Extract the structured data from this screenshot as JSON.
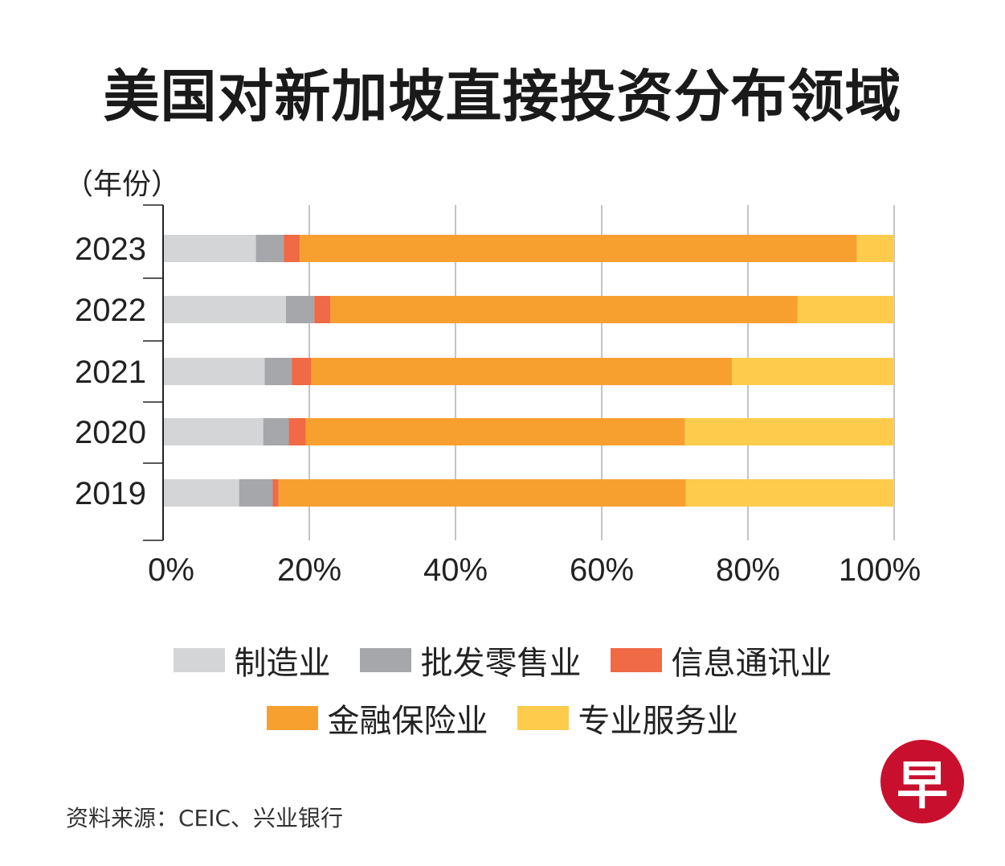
{
  "chart_data": {
    "type": "bar",
    "orientation": "horizontal",
    "stacked": "percent",
    "title": "美国对新加坡直接投资分布领域",
    "y_unit_label": "（年份）",
    "categories": [
      "2023",
      "2022",
      "2021",
      "2020",
      "2019"
    ],
    "x_ticks": [
      "0%",
      "20%",
      "40%",
      "60%",
      "80%",
      "100%"
    ],
    "xlim": [
      0,
      100
    ],
    "grid": true,
    "legend_position": "bottom",
    "series": [
      {
        "name": "制造业",
        "color": "#d4d5d7",
        "values": [
          12.7,
          16.8,
          13.9,
          13.7,
          10.4
        ]
      },
      {
        "name": "批发零售业",
        "color": "#a6a7aa",
        "values": [
          3.8,
          3.9,
          3.7,
          3.5,
          4.6
        ]
      },
      {
        "name": "信息通讯业",
        "color": "#ef6a45",
        "values": [
          2.2,
          2.2,
          2.7,
          2.3,
          0.8
        ]
      },
      {
        "name": "金融保险业",
        "color": "#f7a02f",
        "values": [
          76.2,
          63.9,
          57.5,
          51.9,
          55.7
        ]
      },
      {
        "name": "专业服务业",
        "color": "#fecb4c",
        "values": [
          5.1,
          13.2,
          22.2,
          28.6,
          28.5
        ]
      }
    ]
  },
  "source": "资料来源：CEIC、兴业银行",
  "logo": {
    "text": "早",
    "color": "#c8102e"
  }
}
